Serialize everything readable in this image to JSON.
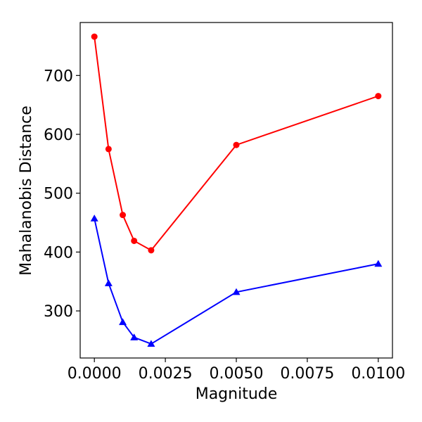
{
  "chart_data": {
    "type": "line",
    "title": "",
    "xlabel": "Magnitude",
    "ylabel": "Mahalanobis Distance",
    "xlim": [
      -0.0005,
      0.0105
    ],
    "ylim": [
      220,
      790
    ],
    "x_ticks": [
      0.0,
      0.0025,
      0.005,
      0.0075,
      0.01
    ],
    "x_tick_labels": [
      "0.0000",
      "0.0025",
      "0.0050",
      "0.0075",
      "0.0100"
    ],
    "y_ticks": [
      300,
      400,
      500,
      600,
      700
    ],
    "y_tick_labels": [
      "300",
      "400",
      "500",
      "600",
      "700"
    ],
    "grid": false,
    "legend": "none",
    "series": [
      {
        "color": "#ff0000",
        "marker": "circle",
        "x": [
          0.0,
          0.0005,
          0.001,
          0.0014,
          0.002,
          0.005,
          0.01
        ],
        "y": [
          766,
          575,
          463,
          419,
          403,
          582,
          665
        ]
      },
      {
        "color": "#0000ff",
        "marker": "triangle",
        "x": [
          0.0,
          0.0005,
          0.001,
          0.0014,
          0.002,
          0.005,
          0.01
        ],
        "y": [
          457,
          347,
          281,
          255,
          244,
          332,
          380
        ]
      }
    ]
  }
}
